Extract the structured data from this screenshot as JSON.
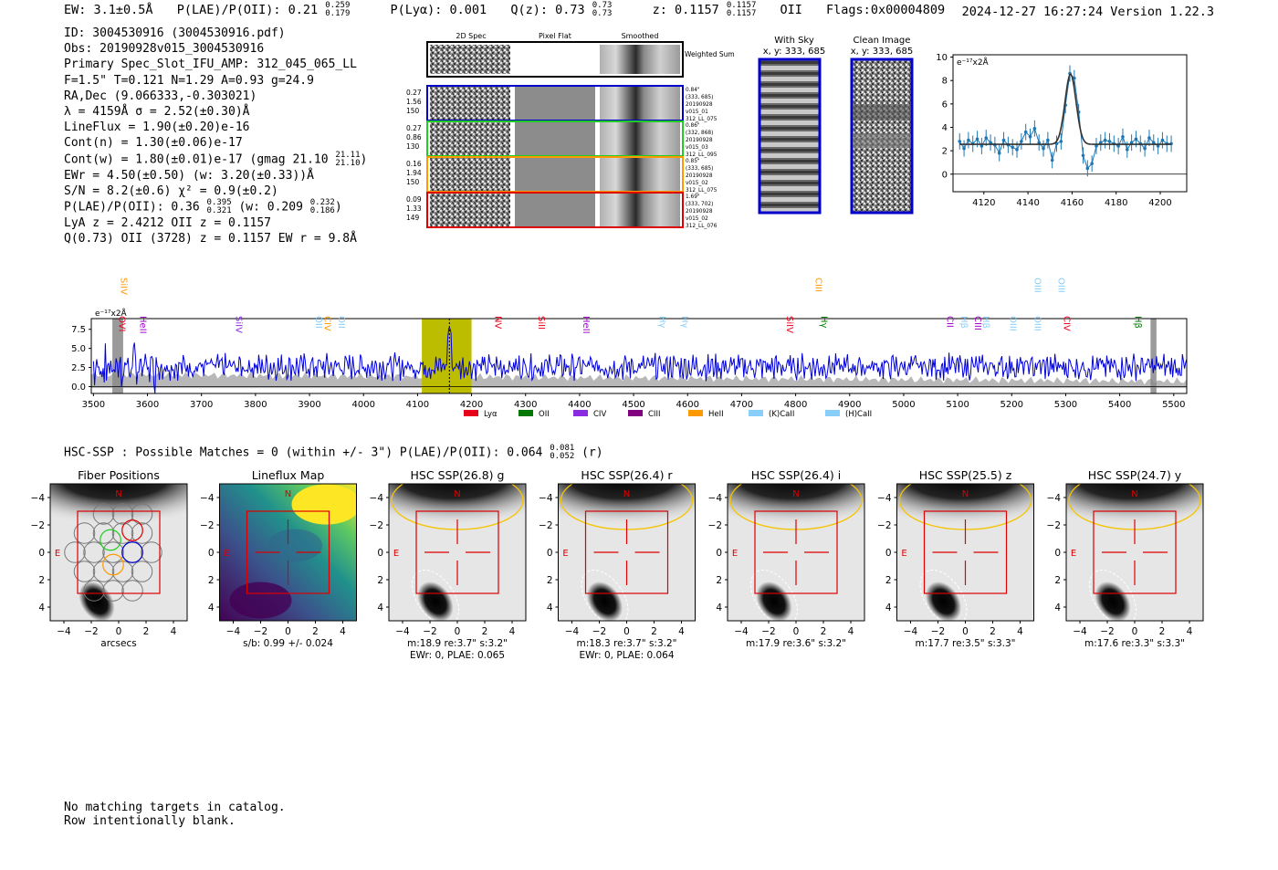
{
  "header": {
    "ew": "EW: 3.1±0.5Å",
    "plae_label": "P(LAE)/P(OII): 0.21",
    "plae_hi": "0.259",
    "plae_lo": "0.179",
    "plya": "P(Lyα): 0.001",
    "qz_label": "Q(z): 0.73",
    "qz_hi": "0.73",
    "qz_lo": "0.73",
    "z_label": "z: 0.1157",
    "z_hi": "0.1157",
    "z_lo": "0.1157",
    "z_line": "OII",
    "flags": "Flags:0x00004809",
    "timestamp": "2024-12-27 16:27:24  Version 1.22.3"
  },
  "info": {
    "id": "ID: 3004530916 (3004530916.pdf)",
    "obs": "Obs: 20190928v015_3004530916",
    "primary": "Primary Spec_Slot_IFU_AMP: 312_045_065_LL",
    "params": "F=1.5\"  T=0.121  N=1.29  A=0.93  g=24.9",
    "radec": "RA,Dec (9.066333,-0.303021)",
    "lambda": "λ = 4159Å   σ = 2.52(±0.30)Å",
    "lineflux": "LineFlux = 1.90(±0.20)e-16",
    "contn": "Cont(n) = 1.30(±0.06)e-17",
    "contw_label": "Cont(w) = 1.80(±0.01)e-17 (gmag 21.10",
    "contw_hi": "21.11",
    "contw_lo": "21.10",
    "ewr": "EWr = 4.50(±0.50) (w: 3.20(±0.33))Å",
    "sn": "S/N = 8.2(±0.6)  χ² = 0.9(±0.2)",
    "plae_label": "P(LAE)/P(OII): 0.36",
    "plae_hi": "0.395",
    "plae_lo": "0.321",
    "plae_w": "(w: 0.209",
    "plae_w_hi": "0.232",
    "plae_w_lo": "0.186",
    "lya_z": "LyA z = 2.4212  OII z = 0.1157",
    "q": "Q(0.73) OII (3728) z = 0.1157  EW r = 9.8Å"
  },
  "spec2d": {
    "col_titles": [
      "2D Spec",
      "Pixel Flat",
      "Smoothed"
    ],
    "weighted_label": "Weighted Sum",
    "rows": [
      {
        "left": [
          "0.27",
          "1.56",
          "150"
        ],
        "right": [
          "0.84\"",
          "(333, 685)",
          "20190928",
          "v015_01",
          "312_LL_075"
        ],
        "color": "#0000cc"
      },
      {
        "left": [
          "0.27",
          "0.86",
          "130"
        ],
        "right": [
          "0.86\"",
          "(332, 868)",
          "20190928",
          "v015_03",
          "312_LL_095"
        ],
        "color": "#22cc22"
      },
      {
        "left": [
          "0.16",
          "1.94",
          "150"
        ],
        "right": [
          "0.85\"",
          "(333, 685)",
          "20190928",
          "v015_02",
          "312_LL_075"
        ],
        "color": "#ff9900"
      },
      {
        "left": [
          "0.09",
          "1.33",
          "149"
        ],
        "right": [
          "1.69\"",
          "(333, 702)",
          "20190928",
          "v015_02",
          "312_LL_076"
        ],
        "color": "#dd0000"
      }
    ]
  },
  "cutouts": {
    "with_sky_title": "With Sky",
    "with_sky_coords": "x, y: 333, 685",
    "clean_title": "Clean Image",
    "clean_coords": "x, y: 333, 685"
  },
  "zoom_chart": {
    "type": "line",
    "title": "",
    "ylabel_unit": "e⁻¹⁷x2Å",
    "xlim": [
      4106,
      4212
    ],
    "ylim": [
      -1.5,
      10.2
    ],
    "xticks": [
      "4120",
      "4140",
      "4160",
      "4180",
      "4200"
    ],
    "yticks": [
      "0",
      "2",
      "4",
      "6",
      "8",
      "10"
    ],
    "data_x": [
      4109,
      4111,
      4113,
      4115,
      4117,
      4119,
      4121,
      4123,
      4125,
      4127,
      4129,
      4131,
      4133,
      4135,
      4137,
      4139,
      4141,
      4143,
      4145,
      4147,
      4149,
      4151,
      4153,
      4155,
      4157,
      4159,
      4161,
      4163,
      4165,
      4167,
      4169,
      4171,
      4173,
      4175,
      4177,
      4179,
      4181,
      4183,
      4185,
      4187,
      4189,
      4191,
      4193,
      4195,
      4197,
      4199,
      4201,
      4203,
      4205
    ],
    "data_y": [
      2.8,
      2.2,
      2.9,
      2.6,
      3.0,
      2.4,
      3.1,
      2.7,
      2.5,
      1.8,
      2.9,
      2.5,
      2.3,
      2.1,
      2.8,
      3.6,
      3.2,
      3.9,
      2.7,
      2.2,
      2.9,
      1.2,
      2.6,
      2.8,
      5.9,
      8.6,
      8.2,
      5.3,
      1.6,
      0.5,
      0.9,
      2.4,
      2.7,
      2.9,
      2.8,
      2.6,
      2.4,
      3.2,
      2.1,
      2.7,
      3.0,
      2.6,
      2.2,
      3.1,
      2.7,
      2.4,
      2.9,
      2.6,
      2.6
    ],
    "error": 0.7,
    "model": {
      "continuum": 2.55,
      "amplitude": 6.0,
      "center": 4159.3,
      "sigma": 2.52
    }
  },
  "full_spectrum": {
    "type": "line",
    "unit_label": "e⁻¹⁷x2Å",
    "xlim": [
      3496,
      5524
    ],
    "ylim": [
      -0.9,
      8.9
    ],
    "xticks": [
      "3500",
      "3600",
      "3700",
      "3800",
      "3900",
      "4000",
      "4100",
      "4200",
      "4300",
      "4400",
      "4500",
      "4600",
      "4700",
      "4800",
      "4900",
      "5000",
      "5100",
      "5200",
      "5300",
      "5400",
      "5500"
    ],
    "yticks": [
      "0.0",
      "2.5",
      "5.0",
      "7.5"
    ],
    "highlight_range": [
      4108,
      4200
    ],
    "line_center": 4159,
    "masked_ranges": [
      [
        3535,
        3555
      ],
      [
        5457,
        5468
      ]
    ],
    "continuum": 2.6,
    "line_labels": [
      {
        "label": "OVI",
        "wave": 3541,
        "color": "#e8001a",
        "row": "low"
      },
      {
        "label": "SiIV",
        "wave": 3544,
        "color": "#ff9900",
        "row": "high"
      },
      {
        "label": "HeII",
        "wave": 3580,
        "color": "#a000cc",
        "row": "low"
      },
      {
        "label": "SiIV",
        "wave": 3757,
        "color": "#8a2be2",
        "row": "low"
      },
      {
        "label": "OII",
        "wave": 3905,
        "color": "#87cefa",
        "row": "low"
      },
      {
        "label": "CIV",
        "wave": 3921,
        "color": "#ff9900",
        "row": "low"
      },
      {
        "label": "OII",
        "wave": 3947,
        "color": "#87cefa",
        "row": "low"
      },
      {
        "label": "NV",
        "wave": 4237,
        "color": "#e8001a",
        "row": "low"
      },
      {
        "label": "SiII",
        "wave": 4317,
        "color": "#e8001a",
        "row": "low"
      },
      {
        "label": "HeII",
        "wave": 4400,
        "color": "#a000cc",
        "row": "low"
      },
      {
        "label": "Hγ",
        "wave": 4541,
        "color": "#87cefa",
        "row": "low"
      },
      {
        "label": "Hγ",
        "wave": 4583,
        "color": "#87cefa",
        "row": "low"
      },
      {
        "label": "SiIV",
        "wave": 4777,
        "color": "#e8001a",
        "row": "low"
      },
      {
        "label": "CIII",
        "wave": 4830,
        "color": "#ff9900",
        "row": "high"
      },
      {
        "label": "Hγ",
        "wave": 4840,
        "color": "#007700",
        "row": "low"
      },
      {
        "label": "CII",
        "wave": 5074,
        "color": "#a000cc",
        "row": "low"
      },
      {
        "label": "Hβ",
        "wave": 5100,
        "color": "#87cefa",
        "row": "low"
      },
      {
        "label": "CIII",
        "wave": 5125,
        "color": "#a000cc",
        "row": "low"
      },
      {
        "label": "Hβ",
        "wave": 5140,
        "color": "#87cefa",
        "row": "low"
      },
      {
        "label": "OIII",
        "wave": 5190,
        "color": "#87cefa",
        "row": "low"
      },
      {
        "label": "OIII",
        "wave": 5236,
        "color": "#87cefa",
        "row": "low"
      },
      {
        "label": "OIII",
        "wave": 5236,
        "color": "#87cefa",
        "row": "high"
      },
      {
        "label": "OIII",
        "wave": 5280,
        "color": "#87cefa",
        "row": "high"
      },
      {
        "label": "CIV",
        "wave": 5290,
        "color": "#e8001a",
        "row": "low"
      },
      {
        "label": "Hβ",
        "wave": 5422,
        "color": "#007700",
        "row": "low"
      }
    ],
    "legend": [
      {
        "label": "Lyα",
        "color": "#e8001a"
      },
      {
        "label": "OII",
        "color": "#007700"
      },
      {
        "label": "CIV",
        "color": "#8a2be2"
      },
      {
        "label": "CIII",
        "color": "#800080"
      },
      {
        "label": "HeII",
        "color": "#ff9900"
      },
      {
        "label": "(K)CaII",
        "color": "#87cefa"
      },
      {
        "label": "(H)CaII",
        "color": "#87cefa"
      }
    ]
  },
  "hsc": {
    "line_label": "HSC-SSP : Possible Matches = 0 (within +/- 3\")  P(LAE)/P(OII): 0.064",
    "line_hi": "0.081",
    "line_lo": "0.052",
    "line_band": "(r)",
    "axis_ticks": [
      "−4",
      "−2",
      "0",
      "2",
      "4"
    ],
    "north": "N",
    "east": "E",
    "panels": [
      {
        "title": "Fiber Positions",
        "caption1": "arcsecs",
        "caption2": "",
        "kind": "fiber"
      },
      {
        "title": "Lineflux Map",
        "caption1": "s/b: 0.99 +/- 0.024",
        "caption2": "",
        "kind": "lineflux"
      },
      {
        "title": "HSC SSP(26.8) g",
        "caption1": "m:18.9  re:3.7\"  s:3.2\"",
        "caption2": "EWr: 0, PLAE: 0.065",
        "kind": "img"
      },
      {
        "title": "HSC SSP(26.4) r",
        "caption1": "m:18.3  re:3.7\"  s:3.2\"",
        "caption2": "EWr: 0, PLAE: 0.064",
        "kind": "img"
      },
      {
        "title": "HSC SSP(26.4) i",
        "caption1": "m:17.9  re:3.6\"  s:3.2\"",
        "caption2": "",
        "kind": "img"
      },
      {
        "title": "HSC SSP(25.5) z",
        "caption1": "m:17.7  re:3.5\"  s:3.3\"",
        "caption2": "",
        "kind": "img"
      },
      {
        "title": "HSC SSP(24.7) y",
        "caption1": "m:17.6  re:3.3\"  s:3.3\"",
        "caption2": "",
        "kind": "img"
      }
    ]
  },
  "footer": {
    "line1": "No matching targets in catalog.",
    "line2": "Row intentionally blank."
  }
}
